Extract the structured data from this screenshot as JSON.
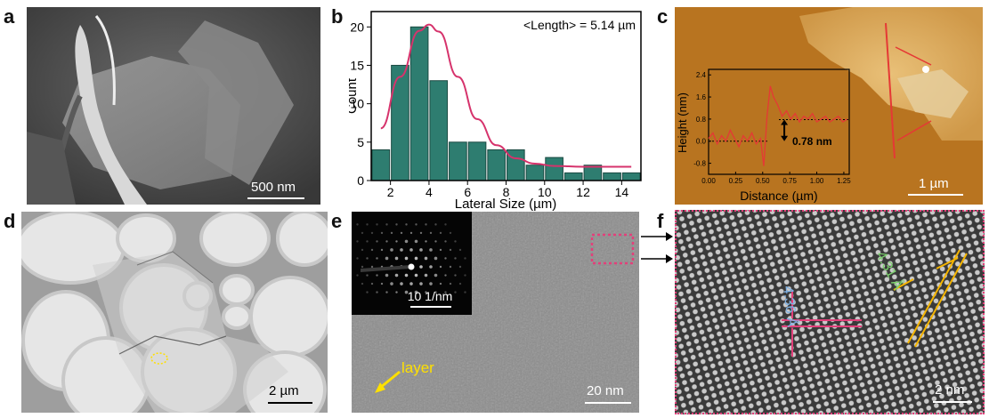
{
  "panels": {
    "a": {
      "label": "a",
      "scalebar": "500 nm"
    },
    "b": {
      "label": "b"
    },
    "c": {
      "label": "c",
      "scalebar": "1 µm"
    },
    "d": {
      "label": "d",
      "scalebar": "2 µm"
    },
    "e": {
      "label": "e",
      "scalebar": "20 nm",
      "inset_scalebar": "10 1/nm",
      "annotation": "layer"
    },
    "f": {
      "label": "f",
      "scalebar": "2 nm",
      "spacing_1": "4.31 Å",
      "spacing_2": "4.36 Å"
    }
  },
  "chart_data": [
    {
      "type": "bar",
      "panel": "b",
      "title": "",
      "annotation": "<Length> = 5.14 µm",
      "xlabel": "Lateral Size (µm)",
      "ylabel": "Count",
      "xlim": [
        1,
        15
      ],
      "ylim": [
        0,
        22
      ],
      "xticks": [
        2,
        4,
        6,
        8,
        10,
        12,
        14
      ],
      "yticks": [
        0,
        5,
        10,
        15,
        20
      ],
      "bin_centers": [
        1.5,
        2.5,
        3.5,
        4.5,
        5.5,
        6.5,
        7.5,
        8.5,
        9.5,
        10.5,
        11.5,
        12.5,
        13.5,
        14.5
      ],
      "values": [
        4,
        15,
        20,
        13,
        5,
        5,
        4,
        4,
        2,
        3,
        1,
        2,
        1,
        1
      ],
      "bar_color": "#2e7d70",
      "fit": {
        "type": "lognormal",
        "color": "#d6336c",
        "points": [
          [
            1.5,
            6.8
          ],
          [
            2.5,
            13.5
          ],
          [
            3.5,
            19.5
          ],
          [
            4.0,
            20.3
          ],
          [
            4.5,
            19.4
          ],
          [
            5.5,
            13.5
          ],
          [
            6.5,
            8.0
          ],
          [
            7.5,
            4.6
          ],
          [
            8.5,
            2.9
          ],
          [
            9.5,
            2.2
          ],
          [
            10.5,
            1.9
          ],
          [
            12,
            1.8
          ],
          [
            14.5,
            1.8
          ]
        ]
      }
    },
    {
      "type": "line",
      "panel": "c-inset",
      "title": "",
      "xlabel": "Distance (µm)",
      "ylabel": "Height (nm)",
      "xlim": [
        0,
        1.3
      ],
      "ylim": [
        -1.2,
        2.6
      ],
      "xticks": [
        "0.00",
        "0.25",
        "0.50",
        "0.75",
        "1.00",
        "1.25"
      ],
      "yticks": [
        "-0.8",
        "0.0",
        "0.8",
        "1.6",
        "2.4"
      ],
      "step_label": "0.78 nm",
      "line_color": "#e53935",
      "x": [
        0.0,
        0.04,
        0.08,
        0.12,
        0.16,
        0.2,
        0.24,
        0.28,
        0.32,
        0.36,
        0.4,
        0.44,
        0.48,
        0.51,
        0.54,
        0.57,
        0.6,
        0.64,
        0.68,
        0.72,
        0.76,
        0.8,
        0.84,
        0.88,
        0.92,
        0.96,
        1.0,
        1.04,
        1.08,
        1.12,
        1.16,
        1.2,
        1.24,
        1.28
      ],
      "y": [
        0.1,
        0.3,
        -0.1,
        0.2,
        0.0,
        0.4,
        0.1,
        -0.2,
        0.2,
        0.0,
        0.3,
        -0.1,
        0.1,
        -0.9,
        0.9,
        2.0,
        1.6,
        1.3,
        0.9,
        1.1,
        0.8,
        1.0,
        0.7,
        0.9,
        0.8,
        1.0,
        0.7,
        0.8,
        0.9,
        0.7,
        0.8,
        0.9,
        0.7,
        0.8
      ]
    }
  ]
}
